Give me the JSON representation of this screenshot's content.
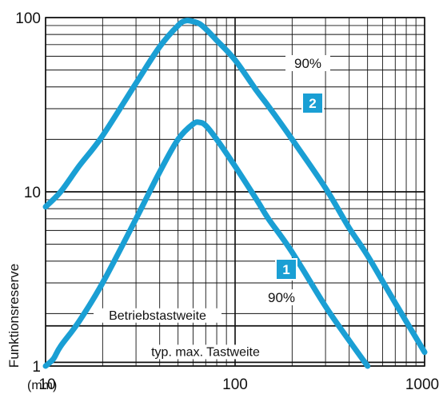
{
  "chart_data": {
    "type": "line",
    "ylabel": "Funktionsreserve",
    "xunit_label": "(mm)",
    "x_scale": "log",
    "y_scale": "log",
    "xlim": [
      10,
      1000
    ],
    "ylim": [
      1,
      100
    ],
    "x_ticks": [
      "10",
      "100",
      "1000"
    ],
    "y_ticks": [
      "100",
      "10",
      "1"
    ],
    "grid": true,
    "reference_lines": [
      {
        "label": "Betriebstastweite",
        "y": 1.7
      },
      {
        "label": "typ. max. Tastweite",
        "y": 1.05
      }
    ],
    "series": [
      {
        "name": "2",
        "color": "#1a9fd4",
        "x": [
          10,
          12,
          15,
          20,
          30,
          40,
          50,
          55,
          60,
          65,
          70,
          80,
          100,
          130,
          150,
          200,
          300,
          400,
          500,
          700,
          1000
        ],
        "y": [
          8.2,
          10,
          14,
          21,
          42,
          68,
          90,
          96,
          95,
          92,
          86,
          74,
          57,
          38,
          31,
          20,
          10.5,
          6.2,
          4.3,
          2.3,
          1.2
        ]
      },
      {
        "name": "1",
        "color": "#1a9fd4",
        "x": [
          10,
          11,
          12,
          15,
          20,
          30,
          40,
          50,
          60,
          65,
          70,
          80,
          100,
          130,
          150,
          200,
          300,
          400,
          500
        ],
        "y": [
          1.0,
          1.1,
          1.3,
          1.8,
          3.0,
          7.0,
          13,
          20,
          24.5,
          25,
          24,
          20,
          14,
          9,
          7,
          4.5,
          2.2,
          1.4,
          1.0
        ]
      }
    ],
    "annotations": [
      {
        "text": "90%",
        "series": "2"
      },
      {
        "text": "90%",
        "series": "1"
      }
    ]
  }
}
